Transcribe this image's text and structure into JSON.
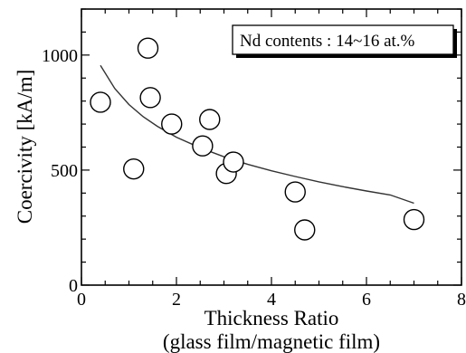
{
  "chart_data": {
    "type": "scatter",
    "xlabel": "Thickness Ratio",
    "xlabel_sub": "(glass film/magnetic film)",
    "ylabel": "Coercivity [kA/m]",
    "xlim": [
      0,
      8
    ],
    "ylim": [
      0,
      1200
    ],
    "xticks": [
      0,
      2,
      4,
      6,
      8
    ],
    "yticks": [
      0,
      500,
      1000
    ],
    "grid": false,
    "annotation": "Nd contents : 14~16 at.%",
    "series": [
      {
        "marker": "open-circle",
        "x": [
          0.4,
          1.1,
          1.4,
          1.45,
          1.9,
          2.55,
          2.7,
          3.05,
          3.2,
          4.5,
          4.7,
          7.0
        ],
        "y": [
          795,
          505,
          1030,
          815,
          700,
          605,
          720,
          485,
          535,
          405,
          240,
          285
        ]
      }
    ],
    "fit_curve": {
      "style": "line",
      "x": [
        0.4,
        0.7,
        1.0,
        1.3,
        1.6,
        2.0,
        2.5,
        3.0,
        3.5,
        4.0,
        4.5,
        5.0,
        5.5,
        6.0,
        6.5,
        7.0
      ],
      "y": [
        955,
        855,
        785,
        732,
        690,
        643,
        597,
        558,
        525,
        497,
        472,
        449,
        428,
        409,
        392,
        356
      ]
    }
  }
}
